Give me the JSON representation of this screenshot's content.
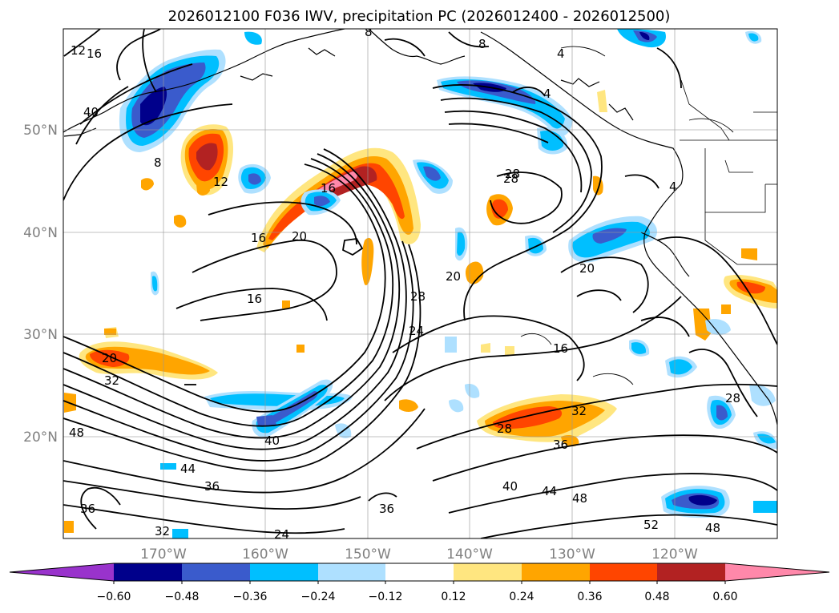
{
  "title": "2026012100 F036 IWV, precipitation PC (2026012400 - 2026012500)",
  "map": {
    "lat_labels": [
      "50°N",
      "40°N",
      "30°N",
      "20°N"
    ],
    "lon_labels": [
      "170°W",
      "160°W",
      "150°W",
      "140°W",
      "130°W",
      "120°W"
    ],
    "contour_labels": [
      "12",
      "16",
      "40",
      "8",
      "8",
      "8",
      "4",
      "12",
      "4",
      "16",
      "20",
      "16",
      "28",
      "20",
      "16",
      "28",
      "24",
      "20",
      "4",
      "16",
      "20",
      "48",
      "28",
      "32",
      "28",
      "36",
      "40",
      "44",
      "36",
      "36",
      "32",
      "24",
      "36",
      "40",
      "44",
      "48",
      "52",
      "48",
      "32",
      "28"
    ]
  },
  "colorbar": {
    "tick_labels": [
      "−0.60",
      "−0.48",
      "−0.36",
      "−0.24",
      "−0.12",
      "0.12",
      "0.24",
      "0.36",
      "0.48",
      "0.60"
    ],
    "colors": [
      "#9933cc",
      "#00008b",
      "#3a5bcc",
      "#00bfff",
      "#aee0ff",
      "#ffffff",
      "#ffe680",
      "#ffa500",
      "#ff4500",
      "#b22222",
      "#ff88aa"
    ]
  }
}
